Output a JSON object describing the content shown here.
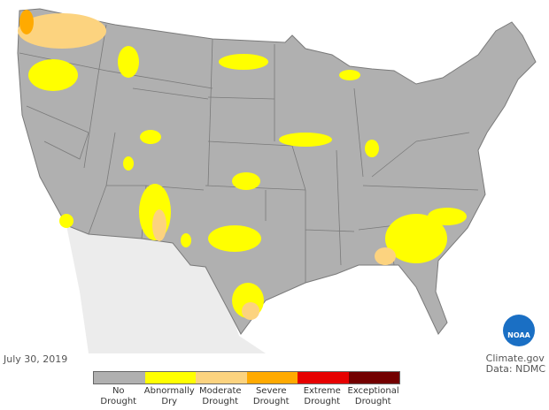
{
  "date": "July 30, 2019",
  "credit": {
    "source": "Climate.gov",
    "data": "Data: NDMC"
  },
  "logo": "NOAA",
  "colors": {
    "land": "#b0b0b0",
    "border": "#7a7a7a",
    "background": "#ffffff",
    "neighbor": "#ececec"
  },
  "legend": [
    {
      "label1": "No",
      "label2": "Drought",
      "color": "#b0b0b0"
    },
    {
      "label1": "Abnormally",
      "label2": "Dry",
      "color": "#ffff00"
    },
    {
      "label1": "Moderate",
      "label2": "Drought",
      "color": "#fcd37f"
    },
    {
      "label1": "Severe",
      "label2": "Drought",
      "color": "#ffaa00"
    },
    {
      "label1": "Extreme",
      "label2": "Drought",
      "color": "#e60000"
    },
    {
      "label1": "Exceptional",
      "label2": "Drought",
      "color": "#730000"
    }
  ]
}
